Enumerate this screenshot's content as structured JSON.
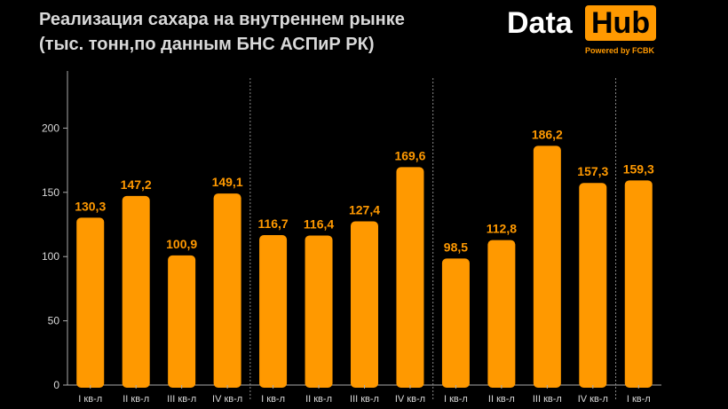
{
  "header": {
    "title_line1": "Реализация сахара на внутреннем рынке",
    "title_line2": "(тыс. тонн,по данным БНС АСПиР РК)"
  },
  "logo": {
    "word1": "Data",
    "word2": "Hub",
    "powered": "Powered by FCBK"
  },
  "colors": {
    "background": "#000000",
    "bar": "#ff9900",
    "text": "#d9d9d9",
    "separator": "#888888"
  },
  "chart_data": {
    "type": "bar",
    "title": "Реализация сахара на внутреннем рынке",
    "subtitle": "(тыс. тонн,по данным БНС АСПиР РК)",
    "categories": [
      "I кв-л",
      "II кв-л",
      "III кв-л",
      "IV кв-л",
      "I кв-л",
      "II кв-л",
      "III кв-л",
      "IV кв-л",
      "I кв-л",
      "II кв-л",
      "III кв-л",
      "IV кв-л",
      "I кв-л"
    ],
    "values": [
      130.3,
      147.2,
      100.9,
      149.1,
      116.7,
      116.4,
      127.4,
      169.6,
      98.5,
      112.8,
      186.2,
      157.3,
      159.3
    ],
    "value_labels": [
      "130,3",
      "147,2",
      "100,9",
      "149,1",
      "116,7",
      "116,4",
      "127,4",
      "169,6",
      "98,5",
      "112,8",
      "186,2",
      "157,3",
      "159,3"
    ],
    "yticks": [
      0,
      50,
      100,
      150,
      200
    ],
    "ylim": [
      0,
      250
    ],
    "group_separators_after": [
      3,
      7,
      11
    ],
    "xlabel": "",
    "ylabel": "",
    "grid": false
  }
}
